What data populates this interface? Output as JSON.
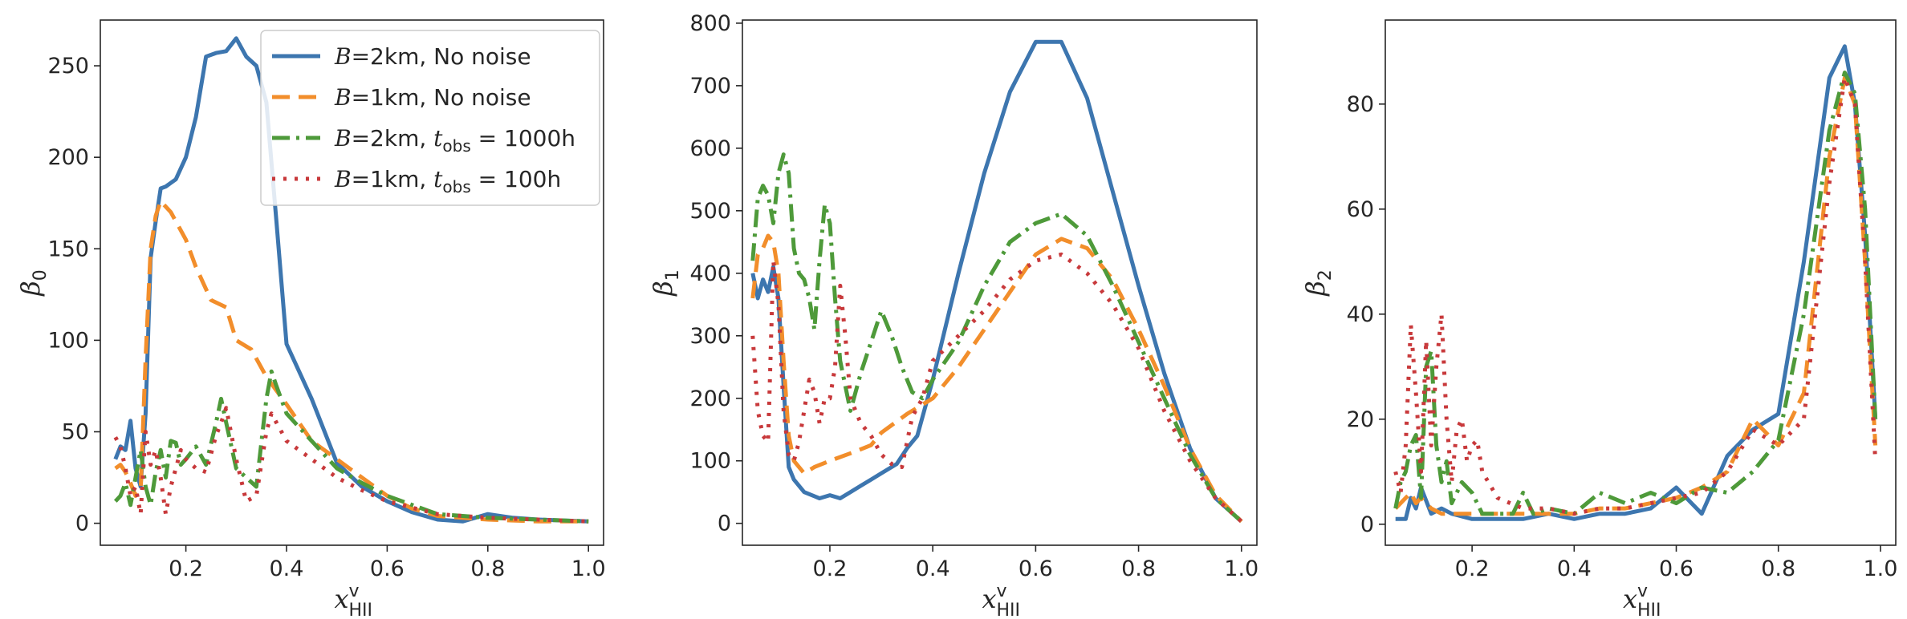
{
  "styles": {
    "colors": [
      "#3d76af",
      "#f28e2b",
      "#4e9a3a",
      "#c8393b"
    ],
    "dashes": [
      "",
      "22,11",
      "22,8,4,8",
      "4,10"
    ],
    "linewidth": 5
  },
  "legend": {
    "placement": "upper-right of first panel",
    "entries": [
      {
        "sym": "B",
        "pre": "=2km, ",
        "text": "No noise"
      },
      {
        "sym": "B",
        "pre": "=1km, ",
        "text": "No noise"
      },
      {
        "sym": "B",
        "pre": "=2km, ",
        "tsym": "t",
        "tsub": "obs",
        "tval": " = 1000h"
      },
      {
        "sym": "B",
        "pre": "=1km, ",
        "tsym": "t",
        "tsub": "obs",
        "tval": " = 100h"
      }
    ]
  },
  "chart_data": [
    {
      "type": "line",
      "ylabel_sym": "β",
      "ylabel_sub": "0",
      "xlabel_sym": "x",
      "xlabel_sup": "v",
      "xlabel_sub": "HII",
      "xlim": [
        0.03,
        1.03
      ],
      "ylim": [
        -12,
        275
      ],
      "xticks": [
        0.2,
        0.4,
        0.6,
        0.8,
        1.0
      ],
      "xtick_labels": [
        "0.2",
        "0.4",
        "0.6",
        "0.8",
        "1.0"
      ],
      "yticks": [
        0,
        50,
        100,
        150,
        200,
        250
      ],
      "ytick_labels": [
        "0",
        "50",
        "100",
        "150",
        "200",
        "250"
      ],
      "series": [
        {
          "name": "B=2km, No noise",
          "x": [
            0.06,
            0.07,
            0.08,
            0.09,
            0.1,
            0.11,
            0.12,
            0.13,
            0.14,
            0.15,
            0.16,
            0.17,
            0.18,
            0.2,
            0.22,
            0.24,
            0.26,
            0.28,
            0.3,
            0.32,
            0.34,
            0.36,
            0.38,
            0.4,
            0.45,
            0.5,
            0.55,
            0.6,
            0.65,
            0.7,
            0.75,
            0.8,
            0.85,
            0.9,
            1.0
          ],
          "values": [
            35,
            42,
            40,
            56,
            30,
            20,
            60,
            145,
            165,
            183,
            184,
            186,
            188,
            200,
            222,
            255,
            257,
            258,
            265,
            255,
            250,
            230,
            165,
            98,
            68,
            33,
            20,
            12,
            6,
            2,
            1,
            5,
            3,
            2,
            1
          ]
        },
        {
          "name": "B=1km, No noise",
          "x": [
            0.06,
            0.07,
            0.08,
            0.09,
            0.1,
            0.11,
            0.12,
            0.13,
            0.14,
            0.15,
            0.17,
            0.2,
            0.22,
            0.25,
            0.28,
            0.3,
            0.33,
            0.36,
            0.4,
            0.45,
            0.5,
            0.55,
            0.6,
            0.65,
            0.7,
            0.8,
            0.9,
            1.0
          ],
          "values": [
            30,
            32,
            28,
            22,
            15,
            18,
            90,
            150,
            168,
            176,
            170,
            155,
            140,
            122,
            118,
            100,
            95,
            80,
            65,
            45,
            35,
            25,
            15,
            8,
            4,
            2,
            1,
            1
          ]
        },
        {
          "name": "B=2km, t_obs = 1000h",
          "x": [
            0.06,
            0.07,
            0.08,
            0.09,
            0.1,
            0.11,
            0.12,
            0.13,
            0.14,
            0.15,
            0.16,
            0.17,
            0.18,
            0.19,
            0.2,
            0.22,
            0.24,
            0.26,
            0.27,
            0.28,
            0.3,
            0.32,
            0.34,
            0.36,
            0.37,
            0.38,
            0.4,
            0.45,
            0.5,
            0.55,
            0.6,
            0.65,
            0.7,
            0.8,
            0.9,
            1.0
          ],
          "values": [
            12,
            15,
            22,
            10,
            25,
            40,
            20,
            10,
            28,
            40,
            25,
            45,
            44,
            32,
            35,
            42,
            32,
            55,
            68,
            55,
            30,
            25,
            20,
            68,
            83,
            75,
            60,
            45,
            30,
            22,
            15,
            10,
            5,
            3,
            2,
            1
          ]
        },
        {
          "name": "B=1km, t_obs = 100h",
          "x": [
            0.06,
            0.07,
            0.08,
            0.09,
            0.1,
            0.11,
            0.12,
            0.13,
            0.14,
            0.15,
            0.16,
            0.17,
            0.18,
            0.19,
            0.2,
            0.22,
            0.24,
            0.26,
            0.27,
            0.28,
            0.3,
            0.32,
            0.34,
            0.36,
            0.37,
            0.38,
            0.4,
            0.45,
            0.5,
            0.55,
            0.6,
            0.7,
            0.8,
            0.9,
            1.0
          ],
          "values": [
            47,
            42,
            30,
            15,
            20,
            5,
            50,
            32,
            40,
            25,
            5,
            20,
            30,
            40,
            35,
            30,
            28,
            48,
            55,
            63,
            35,
            12,
            15,
            50,
            60,
            55,
            45,
            35,
            25,
            18,
            12,
            5,
            3,
            2,
            1
          ]
        }
      ]
    },
    {
      "type": "line",
      "ylabel_sym": "β",
      "ylabel_sub": "1",
      "xlabel_sym": "x",
      "xlabel_sup": "v",
      "xlabel_sub": "HII",
      "xlim": [
        0.03,
        1.03
      ],
      "ylim": [
        -35,
        805
      ],
      "xticks": [
        0.2,
        0.4,
        0.6,
        0.8,
        1.0
      ],
      "xtick_labels": [
        "0.2",
        "0.4",
        "0.6",
        "0.8",
        "1.0"
      ],
      "yticks": [
        0,
        100,
        200,
        300,
        400,
        500,
        600,
        700,
        800
      ],
      "ytick_labels": [
        "0",
        "100",
        "200",
        "300",
        "400",
        "500",
        "600",
        "700",
        "800"
      ],
      "series": [
        {
          "name": "B=2km, No noise",
          "x": [
            0.05,
            0.06,
            0.07,
            0.08,
            0.09,
            0.1,
            0.11,
            0.12,
            0.13,
            0.15,
            0.18,
            0.2,
            0.22,
            0.24,
            0.26,
            0.28,
            0.3,
            0.33,
            0.35,
            0.37,
            0.4,
            0.45,
            0.5,
            0.55,
            0.6,
            0.65,
            0.7,
            0.75,
            0.8,
            0.85,
            0.9,
            0.95,
            1.0
          ],
          "values": [
            400,
            360,
            390,
            370,
            410,
            360,
            220,
            90,
            70,
            50,
            40,
            45,
            40,
            50,
            60,
            70,
            80,
            95,
            120,
            140,
            230,
            400,
            560,
            690,
            770,
            770,
            680,
            530,
            380,
            240,
            120,
            40,
            3
          ]
        },
        {
          "name": "B=1km, No noise",
          "x": [
            0.05,
            0.06,
            0.07,
            0.08,
            0.09,
            0.1,
            0.11,
            0.12,
            0.13,
            0.15,
            0.17,
            0.2,
            0.25,
            0.28,
            0.3,
            0.35,
            0.4,
            0.45,
            0.5,
            0.55,
            0.6,
            0.65,
            0.7,
            0.75,
            0.8,
            0.85,
            0.9,
            0.95,
            1.0
          ],
          "values": [
            360,
            430,
            440,
            460,
            450,
            400,
            260,
            140,
            100,
            80,
            90,
            100,
            115,
            125,
            145,
            175,
            200,
            250,
            310,
            370,
            430,
            455,
            440,
            390,
            310,
            220,
            120,
            45,
            3
          ]
        },
        {
          "name": "B=2km, t_obs = 1000h",
          "x": [
            0.05,
            0.06,
            0.07,
            0.08,
            0.09,
            0.1,
            0.11,
            0.12,
            0.13,
            0.14,
            0.15,
            0.16,
            0.17,
            0.18,
            0.19,
            0.2,
            0.21,
            0.22,
            0.23,
            0.24,
            0.26,
            0.28,
            0.3,
            0.32,
            0.34,
            0.36,
            0.38,
            0.4,
            0.45,
            0.5,
            0.55,
            0.6,
            0.65,
            0.7,
            0.75,
            0.8,
            0.85,
            0.9,
            0.95,
            1.0
          ],
          "values": [
            420,
            520,
            540,
            525,
            480,
            560,
            590,
            560,
            440,
            400,
            390,
            360,
            310,
            420,
            510,
            480,
            360,
            260,
            220,
            180,
            240,
            290,
            340,
            300,
            250,
            210,
            200,
            230,
            290,
            380,
            450,
            480,
            495,
            460,
            380,
            290,
            200,
            110,
            40,
            3
          ]
        },
        {
          "name": "B=1km, t_obs = 100h",
          "x": [
            0.05,
            0.06,
            0.07,
            0.08,
            0.09,
            0.1,
            0.11,
            0.12,
            0.13,
            0.14,
            0.15,
            0.16,
            0.17,
            0.18,
            0.19,
            0.2,
            0.21,
            0.22,
            0.23,
            0.24,
            0.26,
            0.28,
            0.3,
            0.32,
            0.34,
            0.36,
            0.38,
            0.4,
            0.45,
            0.5,
            0.55,
            0.6,
            0.65,
            0.7,
            0.75,
            0.8,
            0.85,
            0.9,
            0.95,
            1.0
          ],
          "values": [
            300,
            180,
            140,
            130,
            420,
            350,
            180,
            110,
            100,
            130,
            180,
            230,
            210,
            160,
            200,
            200,
            250,
            380,
            300,
            200,
            160,
            140,
            110,
            95,
            90,
            170,
            200,
            260,
            300,
            340,
            390,
            420,
            430,
            400,
            350,
            280,
            180,
            100,
            40,
            3
          ]
        }
      ]
    },
    {
      "type": "line",
      "ylabel_sym": "β",
      "ylabel_sub": "2",
      "xlabel_sym": "x",
      "xlabel_sup": "v",
      "xlabel_sub": "HII",
      "xlim": [
        0.03,
        1.03
      ],
      "ylim": [
        -4,
        96
      ],
      "xticks": [
        0.2,
        0.4,
        0.6,
        0.8,
        1.0
      ],
      "xtick_labels": [
        "0.2",
        "0.4",
        "0.6",
        "0.8",
        "1.0"
      ],
      "yticks": [
        0,
        20,
        40,
        60,
        80
      ],
      "ytick_labels": [
        "0",
        "20",
        "40",
        "60",
        "80"
      ],
      "series": [
        {
          "name": "B=2km, No noise",
          "x": [
            0.05,
            0.07,
            0.08,
            0.09,
            0.1,
            0.12,
            0.14,
            0.16,
            0.2,
            0.25,
            0.3,
            0.35,
            0.4,
            0.45,
            0.5,
            0.55,
            0.6,
            0.65,
            0.7,
            0.75,
            0.8,
            0.85,
            0.9,
            0.93,
            0.95,
            0.97,
            0.99
          ],
          "values": [
            1,
            1,
            5,
            3,
            7,
            2,
            3,
            2,
            1,
            1,
            1,
            2,
            1,
            2,
            2,
            3,
            7,
            2,
            13,
            18,
            21,
            50,
            85,
            91,
            80,
            55,
            20
          ]
        },
        {
          "name": "B=1km, No noise",
          "x": [
            0.05,
            0.07,
            0.08,
            0.09,
            0.1,
            0.12,
            0.14,
            0.16,
            0.2,
            0.25,
            0.3,
            0.35,
            0.4,
            0.45,
            0.5,
            0.55,
            0.6,
            0.65,
            0.7,
            0.75,
            0.8,
            0.85,
            0.9,
            0.93,
            0.95,
            0.97,
            0.99
          ],
          "values": [
            3,
            5,
            6,
            4,
            5,
            3,
            2,
            2,
            2,
            2,
            2,
            2,
            2,
            3,
            3,
            4,
            5,
            7,
            10,
            20,
            15,
            25,
            70,
            85,
            80,
            50,
            15
          ]
        },
        {
          "name": "B=2km, t_obs = 1000h",
          "x": [
            0.05,
            0.06,
            0.07,
            0.08,
            0.09,
            0.1,
            0.11,
            0.12,
            0.13,
            0.14,
            0.15,
            0.16,
            0.18,
            0.2,
            0.22,
            0.25,
            0.28,
            0.3,
            0.32,
            0.35,
            0.4,
            0.45,
            0.5,
            0.55,
            0.6,
            0.65,
            0.7,
            0.75,
            0.8,
            0.85,
            0.9,
            0.93,
            0.95,
            0.97,
            0.99
          ],
          "values": [
            3,
            8,
            10,
            15,
            17,
            5,
            30,
            33,
            15,
            8,
            12,
            4,
            8,
            6,
            2,
            2,
            2,
            6,
            2,
            3,
            2,
            6,
            4,
            6,
            4,
            7,
            6,
            10,
            16,
            40,
            75,
            86,
            82,
            60,
            20
          ]
        },
        {
          "name": "B=1km, t_obs = 100h",
          "x": [
            0.05,
            0.06,
            0.07,
            0.08,
            0.09,
            0.1,
            0.11,
            0.12,
            0.13,
            0.14,
            0.15,
            0.16,
            0.17,
            0.18,
            0.19,
            0.2,
            0.21,
            0.22,
            0.25,
            0.3,
            0.35,
            0.4,
            0.45,
            0.5,
            0.55,
            0.6,
            0.65,
            0.7,
            0.75,
            0.8,
            0.85,
            0.9,
            0.93,
            0.95,
            0.97,
            0.99
          ],
          "values": [
            10,
            6,
            15,
            38,
            25,
            10,
            35,
            15,
            30,
            40,
            20,
            8,
            18,
            20,
            12,
            15,
            16,
            10,
            5,
            3,
            3,
            2,
            3,
            3,
            4,
            5,
            6,
            10,
            18,
            15,
            20,
            65,
            85,
            80,
            50,
            12
          ]
        }
      ]
    }
  ]
}
